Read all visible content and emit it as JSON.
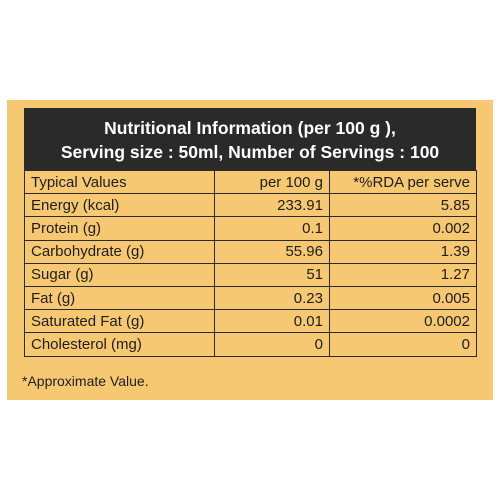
{
  "header": {
    "line1": "Nutritional Information (per 100 g ),",
    "line2": "Serving size : 50ml, Number of Servings : 100"
  },
  "table": {
    "columns": [
      "Typical Values",
      "per 100 g",
      "*%RDA per serve"
    ],
    "rows": [
      {
        "name": "Energy (kcal)",
        "per100g": "233.91",
        "rda": "5.85"
      },
      {
        "name": "Protein (g)",
        "per100g": "0.1",
        "rda": "0.002"
      },
      {
        "name": "Carbohydrate (g)",
        "per100g": "55.96",
        "rda": "1.39"
      },
      {
        "name": "Sugar (g)",
        "per100g": "51",
        "rda": "1.27"
      },
      {
        "name": "Fat (g)",
        "per100g": "0.23",
        "rda": "0.005"
      },
      {
        "name": "Saturated Fat (g)",
        "per100g": "0.01",
        "rda": "0.0002"
      },
      {
        "name": "Cholesterol (mg)",
        "per100g": "0",
        "rda": "0"
      }
    ]
  },
  "footnote": "*Approximate Value.",
  "colors": {
    "panel": "#f7c872",
    "header_bg": "#2a2a2a",
    "header_text": "#ffffff",
    "border": "#2a2a2a"
  }
}
